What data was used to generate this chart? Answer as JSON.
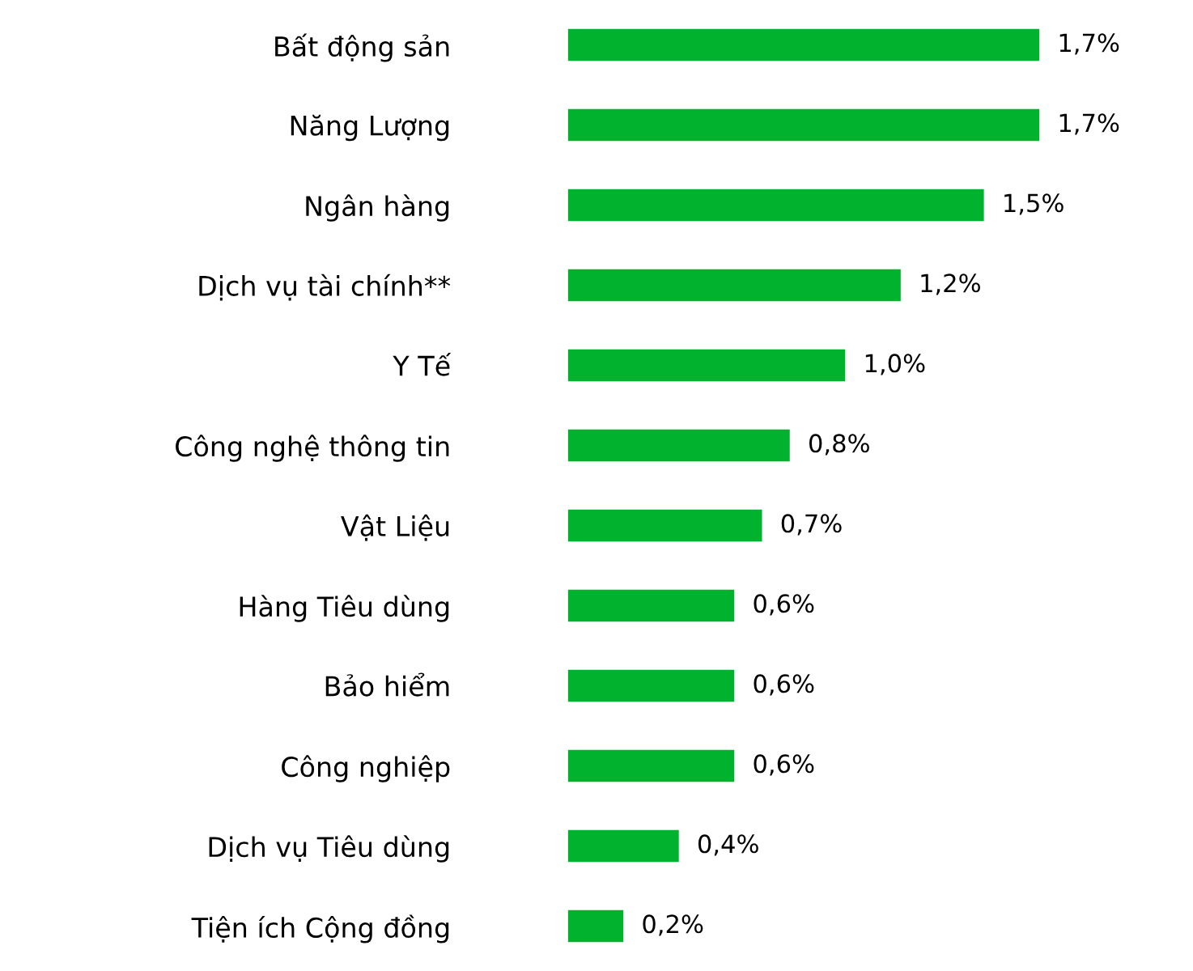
{
  "chart_data": {
    "type": "bar",
    "orientation": "horizontal",
    "categories": [
      "Bất động sản",
      "Năng Lượng",
      "Ngân hàng",
      "Dịch vụ tài chính**",
      "Y Tế",
      "Công nghệ thông tin",
      "Vật Liệu",
      "Hàng Tiêu dùng",
      "Bảo hiểm",
      "Công nghiệp",
      "Dịch vụ Tiêu dùng",
      "Tiện ích Cộng đồng"
    ],
    "values": [
      1.7,
      1.7,
      1.5,
      1.2,
      1.0,
      0.8,
      0.7,
      0.6,
      0.6,
      0.6,
      0.4,
      0.2
    ],
    "value_labels": [
      "1,7%",
      "1,7%",
      "1,5%",
      "1,2%",
      "1,0%",
      "0,8%",
      "0,7%",
      "0,6%",
      "0,6%",
      "0,6%",
      "0,4%",
      "0,2%"
    ],
    "color": "#00b22d",
    "grid": false,
    "legend": false
  }
}
